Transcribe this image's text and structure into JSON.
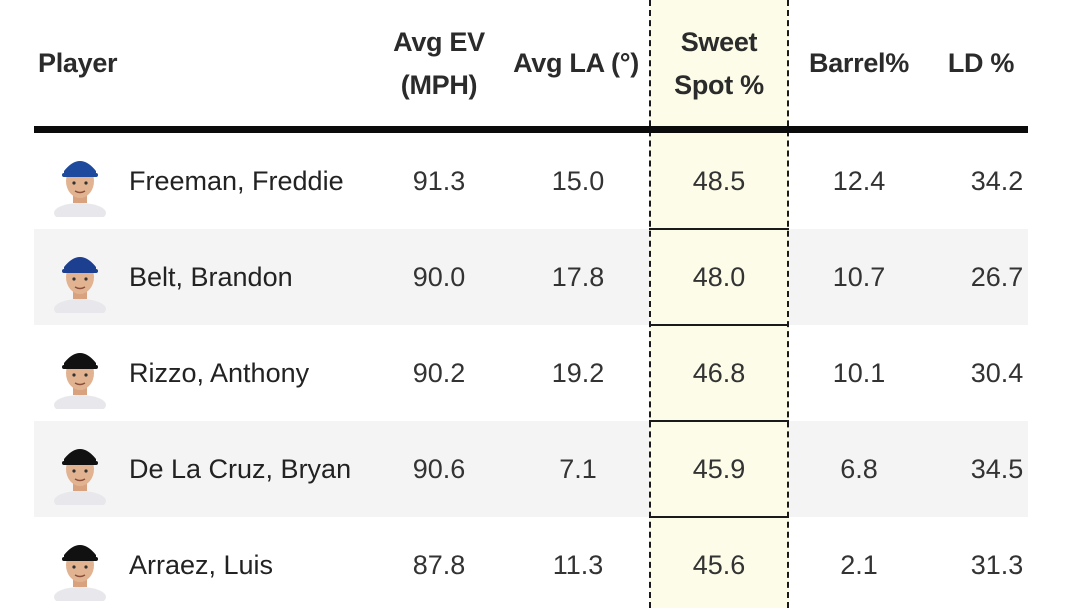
{
  "columns": {
    "player": "Player",
    "avg_ev": "Avg EV (MPH)",
    "avg_la": "Avg LA (°)",
    "sweet_spot": "Sweet Spot %",
    "barrel": "Barrel%",
    "ld": "LD %"
  },
  "highlight_color": "#fcfce8",
  "rows": [
    {
      "player": "Freeman, Freddie",
      "avatar": "player-headshot-dodgers",
      "cap_color": "#1d4a9c",
      "avg_ev": "91.3",
      "avg_la": "15.0",
      "sweet_spot": "48.5",
      "barrel": "12.4",
      "ld": "34.2"
    },
    {
      "player": "Belt, Brandon",
      "avatar": "player-headshot-bluejays",
      "cap_color": "#1d3f8f",
      "avg_ev": "90.0",
      "avg_la": "17.8",
      "sweet_spot": "48.0",
      "barrel": "10.7",
      "ld": "26.7"
    },
    {
      "player": "Rizzo, Anthony",
      "avatar": "player-headshot-yankees",
      "cap_color": "#111111",
      "avg_ev": "90.2",
      "avg_la": "19.2",
      "sweet_spot": "46.8",
      "barrel": "10.1",
      "ld": "30.4"
    },
    {
      "player": "De La Cruz, Bryan",
      "avatar": "player-headshot-marlins",
      "cap_color": "#111111",
      "avg_ev": "90.6",
      "avg_la": "7.1",
      "sweet_spot": "45.9",
      "barrel": "6.8",
      "ld": "34.5"
    },
    {
      "player": "Arraez, Luis",
      "avatar": "player-headshot-marlins",
      "cap_color": "#111111",
      "avg_ev": "87.8",
      "avg_la": "11.3",
      "sweet_spot": "45.6",
      "barrel": "2.1",
      "ld": "31.3"
    }
  ]
}
